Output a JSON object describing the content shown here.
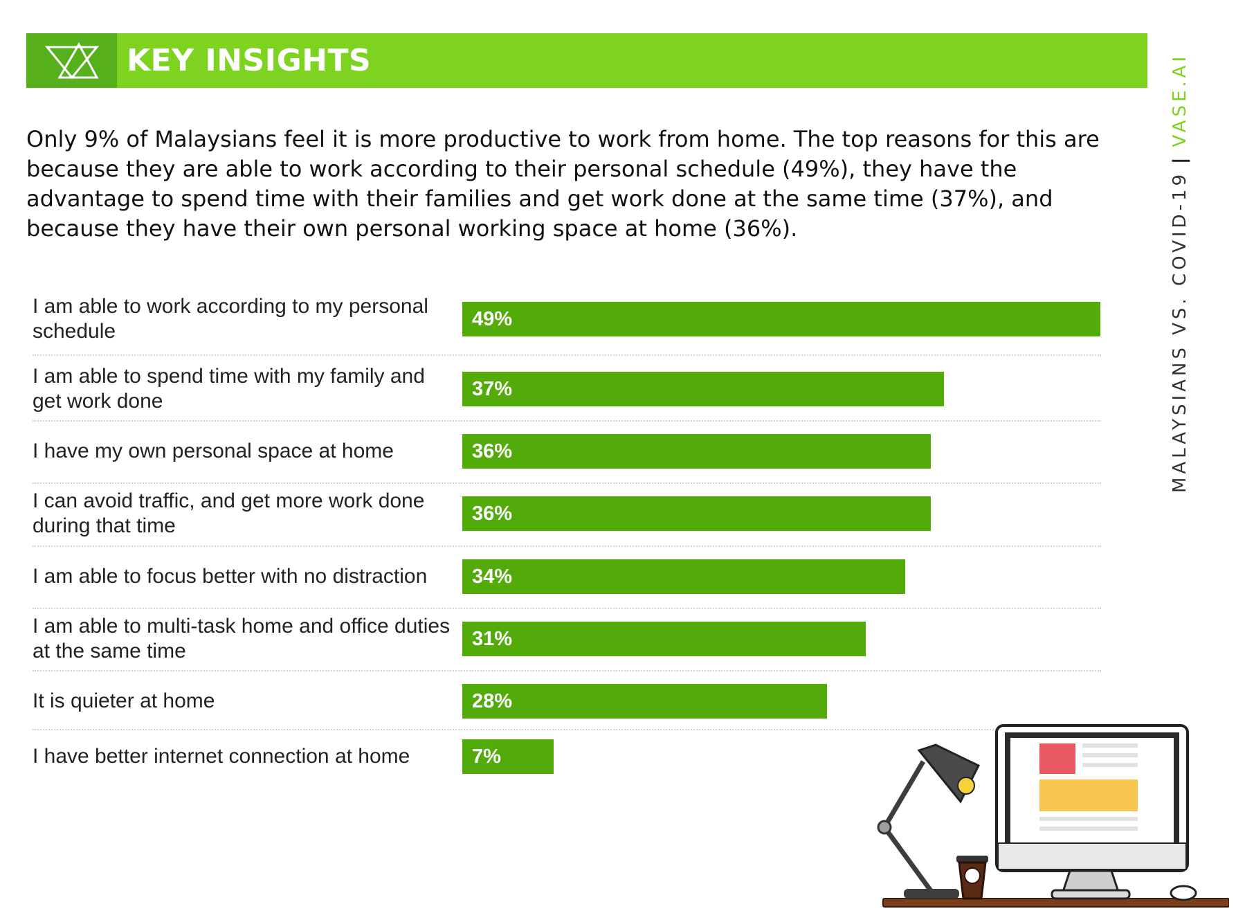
{
  "header": {
    "title": "KEY INSIGHTS",
    "logo_icon": "triangle-logo-icon"
  },
  "intro_text": "Only 9% of Malaysians feel it is more productive to work from home. The top reasons for this are because they are able to work according to their personal schedule (49%), they have the advantage to spend time with their families and get work done at the same time (37%), and because they have their own personal working space at home (36%).",
  "side_label": {
    "left": "MALAYSIANS VS. COVID-19",
    "separator": "|",
    "brand": "VASE.AI"
  },
  "colors": {
    "header_green": "#7ed321",
    "logo_green": "#55b01c",
    "bar_green": "#52ab08",
    "brand_green": "#7ed321"
  },
  "chart_data": {
    "type": "bar",
    "orientation": "horizontal",
    "categories": [
      "I am able to work according to my personal schedule",
      "I am able to spend time with my family and get work done",
      "I have my own personal space at home",
      "I can avoid traffic, and get more work done during that time",
      "I am able to focus better with no distraction",
      "I am able to multi-task home and office duties at the same time",
      "It is quieter at home",
      "I have better internet connection at home"
    ],
    "values": [
      49,
      37,
      36,
      36,
      34,
      31,
      28,
      7
    ],
    "value_labels": [
      "49%",
      "37%",
      "36%",
      "36%",
      "34%",
      "31%",
      "28%",
      "7%"
    ],
    "unit": "%",
    "xlim": [
      0,
      49
    ],
    "grid": false,
    "legend": "none"
  }
}
